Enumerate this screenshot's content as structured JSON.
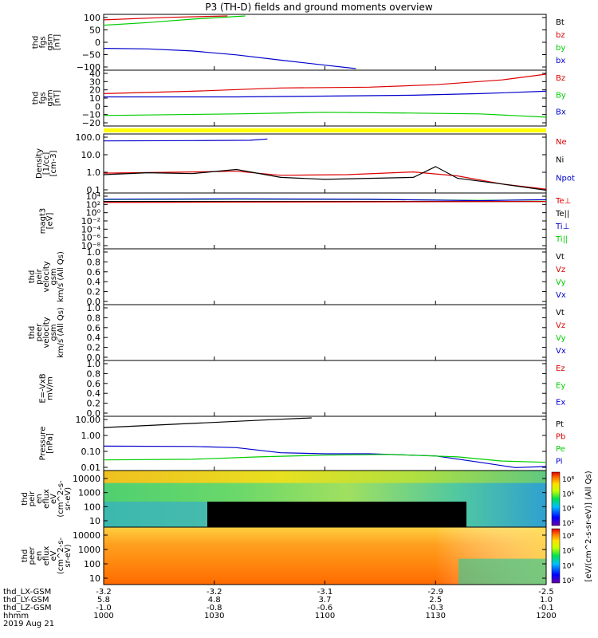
{
  "title": "P3 (TH-D) fields and ground moments overview",
  "chart_data": {
    "type": "line",
    "date_label": "2019 Aug 21",
    "x_ticks": [
      "1000",
      "1030",
      "1100",
      "1130",
      "1200"
    ],
    "ephem_labels": [
      "thd_LX-GSM",
      "thd_LY-GSM",
      "thd_LZ-GSM",
      "hhmm"
    ],
    "ephem_values": [
      [
        "-3.2",
        "-3.2",
        "-3.1",
        "-2.9",
        "-2.5"
      ],
      [
        "5.8",
        "4.8",
        "3.7",
        "2.5",
        "1.0"
      ],
      [
        "-1.0",
        "-0.8",
        "-0.6",
        "-0.3",
        "-0.1"
      ],
      [
        "1000",
        "1030",
        "1100",
        "1130",
        "1200"
      ]
    ],
    "panels": [
      {
        "ylabel": [
          "thd",
          "fgs",
          "gsm",
          "[nT]"
        ],
        "y_ticks": [
          "100",
          "50",
          "0",
          "−50",
          "−100"
        ],
        "ylim": [
          -100,
          100
        ],
        "legend": [
          {
            "name": "Bt",
            "color": "#000000"
          },
          {
            "name": "bz",
            "color": "#dd0000"
          },
          {
            "name": "by",
            "color": "#00cc00"
          },
          {
            "name": "bx",
            "color": "#0000cc"
          }
        ],
        "series": [
          {
            "name": "bz",
            "color": "#dd0000",
            "points": [
              [
                0,
                85
              ],
              [
                0.15,
                95
              ],
              [
                0.28,
                100
              ]
            ]
          },
          {
            "name": "by",
            "color": "#00cc00",
            "points": [
              [
                0,
                65
              ],
              [
                0.1,
                75
              ],
              [
                0.2,
                88
              ],
              [
                0.32,
                100
              ]
            ]
          },
          {
            "name": "bx",
            "color": "#0000cc",
            "points": [
              [
                0,
                -23
              ],
              [
                0.1,
                -25
              ],
              [
                0.2,
                -33
              ],
              [
                0.3,
                -48
              ],
              [
                0.4,
                -68
              ],
              [
                0.5,
                -87
              ],
              [
                0.57,
                -100
              ]
            ]
          }
        ]
      },
      {
        "ylabel": [
          "thd",
          "fgs",
          "gsm",
          "[nT]"
        ],
        "y_ticks": [
          "40",
          "30",
          "20",
          "10",
          "0",
          "−10",
          "−20"
        ],
        "ylim": [
          -25,
          40
        ],
        "legend": [
          {
            "name": "Bz",
            "color": "#dd0000"
          },
          {
            "name": "By",
            "color": "#00cc00"
          },
          {
            "name": "Bx",
            "color": "#0000cc"
          }
        ],
        "series": [
          {
            "name": "Bz",
            "color": "#dd0000",
            "points": [
              [
                0,
                13
              ],
              [
                0.2,
                16
              ],
              [
                0.4,
                20
              ],
              [
                0.6,
                21
              ],
              [
                0.75,
                24
              ],
              [
                0.9,
                30
              ],
              [
                1,
                37
              ]
            ]
          },
          {
            "name": "By",
            "color": "#00cc00",
            "points": [
              [
                0,
                -14
              ],
              [
                0.3,
                -12
              ],
              [
                0.5,
                -10
              ],
              [
                0.7,
                -11
              ],
              [
                0.85,
                -12
              ],
              [
                1,
                -16
              ]
            ]
          },
          {
            "name": "Bx",
            "color": "#0000cc",
            "points": [
              [
                0,
                9
              ],
              [
                0.3,
                9
              ],
              [
                0.5,
                10
              ],
              [
                0.7,
                11
              ],
              [
                0.85,
                13
              ],
              [
                1,
                16
              ]
            ]
          }
        ]
      },
      {
        "ylabel": [
          "Density",
          "[1/cc]",
          "[cm-3]"
        ],
        "y_ticks": [
          "100.0",
          "10.0",
          "1.0",
          "0.1"
        ],
        "log": true,
        "ylim": [
          0.05,
          200
        ],
        "legend": [
          {
            "name": "Ne",
            "color": "#dd0000"
          },
          {
            "name": "Ni",
            "color": "#000000"
          },
          {
            "name": "Npot",
            "color": "#0000cc"
          }
        ],
        "series": [
          {
            "name": "Npot",
            "color": "#0000cc",
            "points": [
              [
                0,
                90
              ],
              [
                0.2,
                95
              ],
              [
                0.33,
                100
              ],
              [
                0.37,
                120
              ]
            ]
          },
          {
            "name": "Ne",
            "color": "#dd0000",
            "points": [
              [
                0,
                0.75
              ],
              [
                0.2,
                0.9
              ],
              [
                0.3,
                1.0
              ],
              [
                0.4,
                0.55
              ],
              [
                0.55,
                0.6
              ],
              [
                0.7,
                0.9
              ],
              [
                0.8,
                0.5
              ],
              [
                0.9,
                0.15
              ],
              [
                1,
                0.07
              ]
            ]
          },
          {
            "name": "Ni",
            "color": "#000000",
            "points": [
              [
                0,
                0.6
              ],
              [
                0.1,
                0.8
              ],
              [
                0.2,
                0.7
              ],
              [
                0.3,
                1.3
              ],
              [
                0.4,
                0.4
              ],
              [
                0.5,
                0.3
              ],
              [
                0.6,
                0.35
              ],
              [
                0.7,
                0.4
              ],
              [
                0.75,
                2.0
              ],
              [
                0.8,
                0.35
              ],
              [
                0.9,
                0.15
              ],
              [
                1,
                0.06
              ]
            ]
          }
        ]
      },
      {
        "ylabel": [
          "magt3",
          "[eV]"
        ],
        "y_ticks": [
          "10⁴",
          "10²",
          "10⁰",
          "10⁻²",
          "10⁻⁴",
          "10⁻⁶",
          "10⁻⁸"
        ],
        "log": true,
        "ylim": [
          1e-09,
          100000.0
        ],
        "legend": [
          {
            "name": "Te⊥",
            "color": "#dd0000"
          },
          {
            "name": "Te||",
            "color": "#000000"
          },
          {
            "name": "Ti⊥",
            "color": "#0000cc"
          },
          {
            "name": "Ti||",
            "color": "#00cc00"
          }
        ],
        "series": [
          {
            "name": "Ti||",
            "color": "#00cc00",
            "points": [
              [
                0,
                5000
              ],
              [
                0.3,
                6000
              ],
              [
                0.6,
                5000
              ],
              [
                0.85,
                3000
              ],
              [
                1,
                4000
              ]
            ]
          },
          {
            "name": "Ti⊥",
            "color": "#0000cc",
            "points": [
              [
                0,
                6000
              ],
              [
                0.3,
                7000
              ],
              [
                0.6,
                5500
              ],
              [
                0.85,
                2500
              ],
              [
                1,
                4500
              ]
            ]
          },
          {
            "name": "Te||",
            "color": "#000000",
            "points": [
              [
                0,
                1500
              ],
              [
                0.5,
                1500
              ],
              [
                1,
                1500
              ]
            ]
          },
          {
            "name": "Te⊥",
            "color": "#dd0000",
            "points": [
              [
                0,
                800
              ],
              [
                0.3,
                1000
              ],
              [
                0.6,
                1200
              ],
              [
                0.9,
                1400
              ],
              [
                1,
                1500
              ]
            ]
          }
        ]
      },
      {
        "ylabel": [
          "thd",
          "peir",
          "velocity",
          "gsm",
          "km/s (All Qs)"
        ],
        "y_ticks": [
          "1.0",
          "0.8",
          "0.6",
          "0.4",
          "0.2",
          "0.0"
        ],
        "ylim": [
          0,
          1
        ],
        "legend": [
          {
            "name": "Vt",
            "color": "#000000"
          },
          {
            "name": "Vz",
            "color": "#dd0000"
          },
          {
            "name": "Vy",
            "color": "#00cc00"
          },
          {
            "name": "Vx",
            "color": "#0000cc"
          }
        ],
        "series": []
      },
      {
        "ylabel": [
          "thd",
          "peer",
          "velocity",
          "gsm",
          "km/s (All Qs)"
        ],
        "y_ticks": [
          "1.0",
          "0.8",
          "0.6",
          "0.4",
          "0.2",
          "0.0"
        ],
        "ylim": [
          0,
          1
        ],
        "legend": [
          {
            "name": "Vt",
            "color": "#000000"
          },
          {
            "name": "Vz",
            "color": "#dd0000"
          },
          {
            "name": "Vy",
            "color": "#00cc00"
          },
          {
            "name": "Vx",
            "color": "#0000cc"
          }
        ],
        "series": []
      },
      {
        "ylabel": [
          "E=-VxB",
          "mV/m"
        ],
        "y_ticks": [
          "1.0",
          "0.8",
          "0.6",
          "0.4",
          "0.2",
          "0.0"
        ],
        "ylim": [
          0,
          1
        ],
        "legend": [
          {
            "name": "Ez",
            "color": "#dd0000"
          },
          {
            "name": "Ey",
            "color": "#00cc00"
          },
          {
            "name": "Ex",
            "color": "#0000cc"
          }
        ],
        "series": []
      },
      {
        "ylabel": [
          "Pressure",
          "[nPa]"
        ],
        "y_ticks": [
          "10.00",
          "1.00",
          "0.10",
          "0.01"
        ],
        "log": true,
        "ylim": [
          0.004,
          20
        ],
        "legend": [
          {
            "name": "Pt",
            "color": "#000000"
          },
          {
            "name": "Pb",
            "color": "#dd0000"
          },
          {
            "name": "Pe",
            "color": "#00cc00"
          },
          {
            "name": "Pi",
            "color": "#0000cc"
          }
        ],
        "series": [
          {
            "name": "Pt",
            "color": "#000000",
            "points": [
              [
                0,
                4
              ],
              [
                0.2,
                8
              ],
              [
                0.4,
                16
              ],
              [
                0.47,
                20
              ]
            ]
          },
          {
            "name": "Pi",
            "color": "#0000cc",
            "points": [
              [
                0,
                0.18
              ],
              [
                0.2,
                0.17
              ],
              [
                0.3,
                0.14
              ],
              [
                0.4,
                0.06
              ],
              [
                0.5,
                0.05
              ],
              [
                0.6,
                0.05
              ],
              [
                0.75,
                0.035
              ],
              [
                0.85,
                0.012
              ],
              [
                0.93,
                0.005
              ],
              [
                1,
                0.006
              ]
            ]
          },
          {
            "name": "Pe",
            "color": "#00cc00",
            "points": [
              [
                0,
                0.018
              ],
              [
                0.2,
                0.02
              ],
              [
                0.35,
                0.03
              ],
              [
                0.5,
                0.04
              ],
              [
                0.65,
                0.045
              ],
              [
                0.8,
                0.03
              ],
              [
                0.9,
                0.015
              ],
              [
                1,
                0.012
              ]
            ]
          }
        ]
      },
      {
        "ylabel": [
          "thd",
          "peir",
          "en",
          "eflux",
          "eV",
          "(cm^2-s-",
          "sr-eV)"
        ],
        "y_ticks": [
          "10000",
          "1000",
          "100",
          "10"
        ],
        "type": "heatmap",
        "colorbar_ticks": [
          "10⁸",
          "10⁶",
          "10⁴",
          "10²"
        ]
      },
      {
        "ylabel": [
          "thd",
          "peer",
          "en",
          "eflux",
          "eV",
          "(cm^2-s-",
          "sr-eV)"
        ],
        "y_ticks": [
          "10000",
          "1000",
          "100",
          "10"
        ],
        "type": "heatmap",
        "colorbar_ticks": [
          "10⁸",
          "10⁶",
          "10⁴",
          "10²"
        ]
      }
    ],
    "colorbar_label": "[eV/(cm^2-s-sr-eV)] (All Qs)"
  }
}
